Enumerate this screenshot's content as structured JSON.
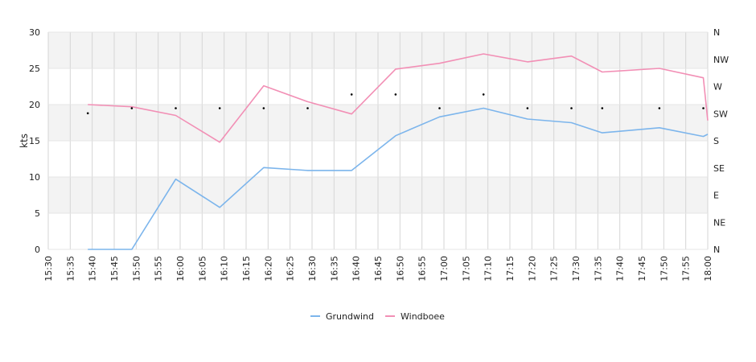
{
  "chart_data": {
    "type": "line",
    "ylabel": "kts",
    "ylim": [
      0,
      30
    ],
    "yticks": [
      0,
      5,
      10,
      15,
      20,
      25,
      30
    ],
    "y2_ticks": [
      "N",
      "NE",
      "E",
      "SE",
      "S",
      "SW",
      "W",
      "NW",
      "N"
    ],
    "x_ticks": [
      "15:30",
      "15:35",
      "15:40",
      "15:45",
      "15:50",
      "15:55",
      "16:00",
      "16:05",
      "16:10",
      "16:15",
      "16:20",
      "16:25",
      "16:30",
      "16:35",
      "16:40",
      "16:45",
      "16:50",
      "16:55",
      "17:00",
      "17:05",
      "17:10",
      "17:15",
      "17:20",
      "17:25",
      "17:30",
      "17:35",
      "17:40",
      "17:45",
      "17:50",
      "17:55",
      "18:00"
    ],
    "grid": true,
    "legend_position": "bottom",
    "series": [
      {
        "name": "Grundwind",
        "color": "#7cb5ec",
        "x": [
          "15:39",
          "15:49",
          "15:59",
          "16:09",
          "16:19",
          "16:29",
          "16:39",
          "16:49",
          "16:59",
          "17:09",
          "17:19",
          "17:29",
          "17:36",
          "17:49",
          "17:59",
          "18:00"
        ],
        "values": [
          0,
          0,
          9.7,
          5.8,
          11.3,
          10.9,
          10.9,
          15.7,
          18.3,
          19.5,
          18.0,
          17.5,
          16.1,
          16.8,
          15.6,
          15.9
        ]
      },
      {
        "name": "Windboee",
        "color": "#f28fb5",
        "x": [
          "15:39",
          "15:49",
          "15:59",
          "16:09",
          "16:19",
          "16:29",
          "16:39",
          "16:49",
          "16:59",
          "17:09",
          "17:19",
          "17:29",
          "17:36",
          "17:49",
          "17:59",
          "18:00"
        ],
        "values": [
          20.0,
          19.7,
          18.5,
          14.8,
          22.6,
          20.4,
          18.7,
          24.9,
          25.7,
          27.0,
          25.9,
          26.7,
          24.5,
          25.0,
          23.7,
          17.8
        ]
      }
    ],
    "direction_points": {
      "x": [
        "15:39",
        "15:49",
        "15:59",
        "16:09",
        "16:19",
        "16:29",
        "16:39",
        "16:49",
        "16:59",
        "17:09",
        "17:19",
        "17:29",
        "17:36",
        "17:49",
        "17:59"
      ],
      "values": [
        18.8,
        19.5,
        19.5,
        19.5,
        19.5,
        19.5,
        21.4,
        21.4,
        19.5,
        21.4,
        19.5,
        19.5,
        19.5,
        19.5,
        19.5
      ]
    }
  }
}
